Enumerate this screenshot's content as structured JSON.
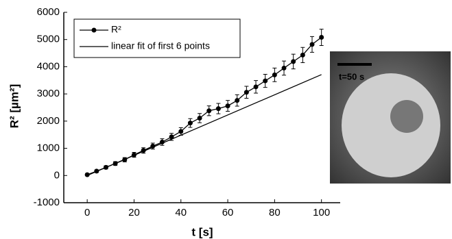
{
  "chart_data": {
    "type": "line",
    "x_label": "t [s]",
    "y_label": "R² [µm²]",
    "xlim": [
      -10,
      108
    ],
    "xticks": [
      0,
      20,
      40,
      60,
      80,
      100
    ],
    "ylim": [
      -1000,
      6000
    ],
    "yticks": [
      -1000,
      0,
      1000,
      2000,
      3000,
      4000,
      5000,
      6000
    ],
    "legend": "top-left",
    "inset_label": "t=50 s",
    "series": [
      {
        "name": "R²",
        "color": "#000000",
        "markers": true,
        "x": [
          0,
          4,
          8,
          12,
          16,
          20,
          24,
          28,
          32,
          36,
          40,
          44,
          48,
          52,
          56,
          60,
          64,
          68,
          72,
          76,
          80,
          84,
          88,
          92,
          96,
          100
        ],
        "values": [
          30,
          160,
          300,
          440,
          580,
          760,
          920,
          1080,
          1230,
          1420,
          1620,
          1930,
          2110,
          2380,
          2460,
          2560,
          2760,
          3060,
          3260,
          3480,
          3700,
          3950,
          4190,
          4430,
          4820,
          5080
        ],
        "errors": [
          30,
          50,
          60,
          70,
          80,
          90,
          100,
          110,
          120,
          130,
          140,
          160,
          170,
          180,
          190,
          200,
          210,
          220,
          230,
          240,
          250,
          260,
          270,
          280,
          290,
          300
        ]
      },
      {
        "name": "linear fit of first 6 points",
        "color": "#000000",
        "markers": false,
        "x": [
          0,
          100
        ],
        "values": [
          0,
          3710
        ]
      }
    ]
  }
}
